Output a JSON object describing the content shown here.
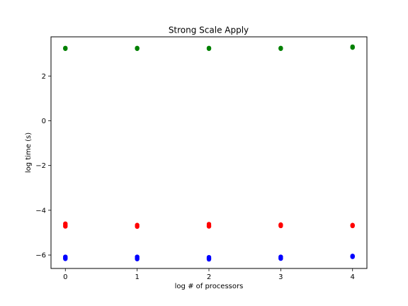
{
  "chart_data": {
    "type": "scatter",
    "title": "Strong Scale Apply",
    "xlabel": "log # of processors",
    "ylabel": "log time (s)",
    "xlim": [
      -0.2,
      4.2
    ],
    "ylim": [
      -6.6,
      3.75
    ],
    "xticks": [
      0,
      1,
      2,
      3,
      4
    ],
    "yticks": [
      -6,
      -4,
      -2,
      0,
      2
    ],
    "xtick_labels": [
      "0",
      "1",
      "2",
      "3",
      "4"
    ],
    "ytick_labels": [
      "−6",
      "−4",
      "−2",
      "0",
      "2"
    ],
    "grid": false,
    "legend": "none",
    "series": [
      {
        "color": "#008000",
        "points": [
          {
            "x": 0,
            "y": 3.22
          },
          {
            "x": 0,
            "y": 3.25
          },
          {
            "x": 1,
            "y": 3.22
          },
          {
            "x": 1,
            "y": 3.25
          },
          {
            "x": 2,
            "y": 3.22
          },
          {
            "x": 2,
            "y": 3.25
          },
          {
            "x": 3,
            "y": 3.22
          },
          {
            "x": 3,
            "y": 3.25
          },
          {
            "x": 4,
            "y": 3.27
          },
          {
            "x": 4,
            "y": 3.31
          }
        ]
      },
      {
        "color": "#ff0000",
        "points": [
          {
            "x": 0,
            "y": -4.6
          },
          {
            "x": 0,
            "y": -4.66
          },
          {
            "x": 0,
            "y": -4.72
          },
          {
            "x": 1,
            "y": -4.66
          },
          {
            "x": 1,
            "y": -4.73
          },
          {
            "x": 2,
            "y": -4.62
          },
          {
            "x": 2,
            "y": -4.68
          },
          {
            "x": 2,
            "y": -4.72
          },
          {
            "x": 3,
            "y": -4.64
          },
          {
            "x": 3,
            "y": -4.7
          },
          {
            "x": 4,
            "y": -4.66
          },
          {
            "x": 4,
            "y": -4.7
          }
        ]
      },
      {
        "color": "#0000ff",
        "points": [
          {
            "x": 0,
            "y": -6.08
          },
          {
            "x": 0,
            "y": -6.13
          },
          {
            "x": 0,
            "y": -6.17
          },
          {
            "x": 1,
            "y": -6.08
          },
          {
            "x": 1,
            "y": -6.13
          },
          {
            "x": 1,
            "y": -6.18
          },
          {
            "x": 2,
            "y": -6.1
          },
          {
            "x": 2,
            "y": -6.15
          },
          {
            "x": 2,
            "y": -6.19
          },
          {
            "x": 3,
            "y": -6.08
          },
          {
            "x": 3,
            "y": -6.12
          },
          {
            "x": 3,
            "y": -6.16
          },
          {
            "x": 4,
            "y": -6.04
          },
          {
            "x": 4,
            "y": -6.08
          }
        ]
      }
    ]
  }
}
